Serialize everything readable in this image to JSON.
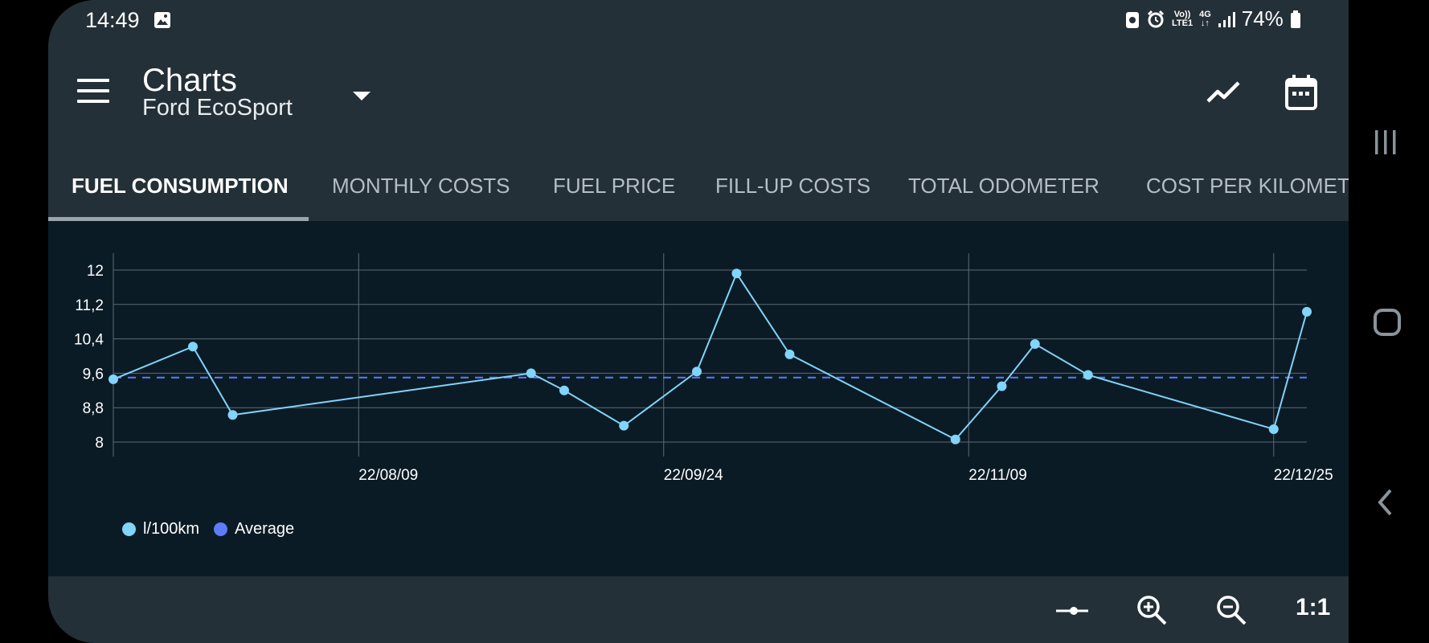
{
  "status": {
    "time": "14:49",
    "battery": "74%",
    "network": "4G",
    "volte": "Vo))",
    "lte": "LTE1"
  },
  "toolbar": {
    "title": "Charts",
    "subtitle": "Ford EcoSport"
  },
  "tabs": [
    {
      "label": "FUEL CONSUMPTION",
      "active": true
    },
    {
      "label": "MONTHLY COSTS"
    },
    {
      "label": "FUEL PRICE"
    },
    {
      "label": "FILL-UP COSTS"
    },
    {
      "label": "TOTAL ODOMETER"
    },
    {
      "label": "COST PER KILOMETR"
    }
  ],
  "icons": {
    "menu": "menu-icon",
    "dropdown": "caret-down-icon",
    "chart_type": "trend-line-icon",
    "calendar": "calendar-icon",
    "zoom_in": "zoom-in-icon",
    "zoom_out": "zoom-out-icon",
    "slider": "slider-icon"
  },
  "bottom": {
    "reset_zoom": "1:1"
  },
  "colors": {
    "series": "#81d4fa",
    "average": "#5c7cfa",
    "panel": "#0b1b26",
    "app_bg": "#243037"
  },
  "chart_data": {
    "type": "line",
    "y_ticks": [
      "12",
      "11,2",
      "10,4",
      "9,6",
      "8,8",
      "8"
    ],
    "ylim": [
      8,
      12
    ],
    "x_ticks": [
      "22/08/09",
      "22/09/24",
      "22/11/09",
      "22/12/25"
    ],
    "grid": true,
    "legend_position": "bottom-left",
    "series": [
      {
        "name": "l/100km",
        "points": [
          {
            "x": "2022-07-03",
            "y": 9.46
          },
          {
            "x": "2022-07-15",
            "y": 10.22
          },
          {
            "x": "2022-07-21",
            "y": 8.63
          },
          {
            "x": "2022-09-04",
            "y": 9.6
          },
          {
            "x": "2022-09-09",
            "y": 9.2
          },
          {
            "x": "2022-09-18",
            "y": 8.38
          },
          {
            "x": "2022-09-29",
            "y": 9.64
          },
          {
            "x": "2022-10-05",
            "y": 11.92
          },
          {
            "x": "2022-10-13",
            "y": 10.04
          },
          {
            "x": "2022-11-07",
            "y": 8.06
          },
          {
            "x": "2022-11-14",
            "y": 9.3
          },
          {
            "x": "2022-11-19",
            "y": 10.28
          },
          {
            "x": "2022-11-27",
            "y": 9.56
          },
          {
            "x": "2022-12-25",
            "y": 8.3
          },
          {
            "x": "2022-12-30",
            "y": 11.03
          }
        ]
      },
      {
        "name": "Average",
        "value": 9.5
      }
    ]
  }
}
